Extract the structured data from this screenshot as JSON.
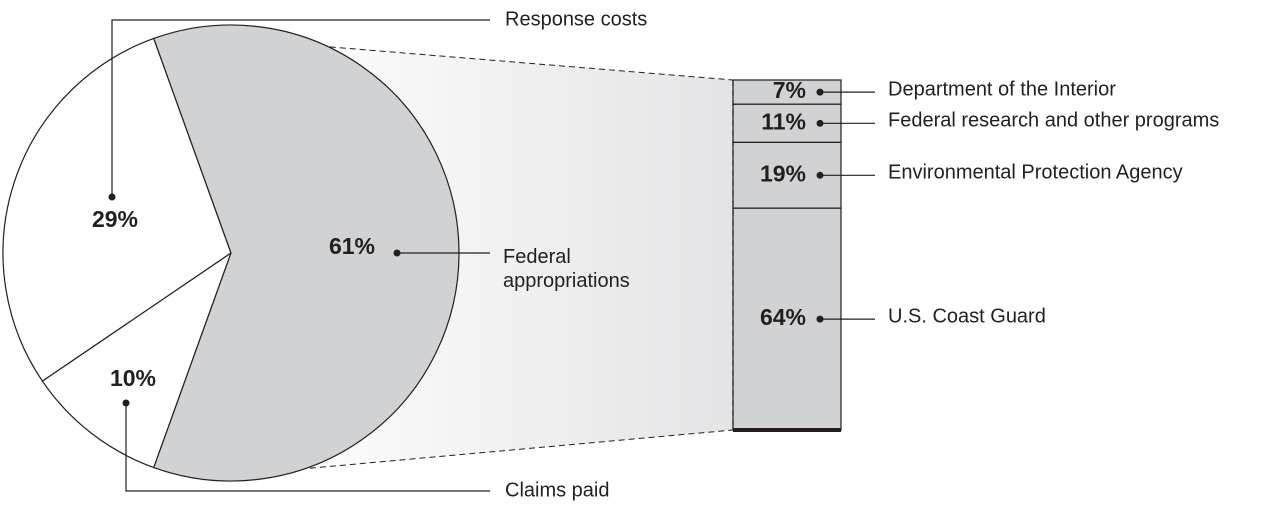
{
  "chart_data": [
    {
      "type": "pie",
      "categories": [
        "Response costs",
        "Claims paid",
        "Federal appropriations"
      ],
      "values": [
        29,
        10,
        61
      ],
      "value_labels": [
        "29%",
        "10%",
        "61%"
      ],
      "colors": [
        "#ffffff",
        "#ffffff",
        "#d1d2d4"
      ]
    },
    {
      "type": "stacked-bar",
      "categories": [
        "Department of the Interior",
        "Federal research and other programs",
        "Environmental Protection Agency",
        "U.S. Coast Guard"
      ],
      "values": [
        7,
        11,
        19,
        64
      ],
      "value_labels": [
        "7%",
        "11%",
        "19%",
        "64%"
      ],
      "color": "#d1d2d4"
    }
  ]
}
